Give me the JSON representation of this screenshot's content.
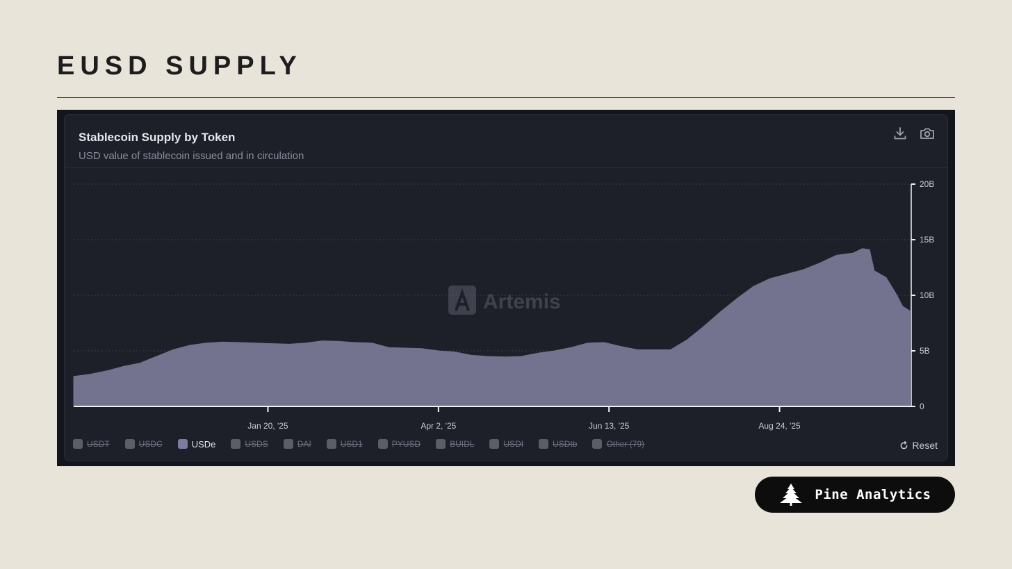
{
  "page": {
    "title": "EUSD SUPPLY"
  },
  "card": {
    "title": "Stablecoin Supply by Token",
    "subtitle": "USD value of stablecoin issued and in circulation",
    "watermark": "Artemis",
    "download_icon": "download-icon",
    "camera_icon": "camera-icon"
  },
  "legend": {
    "items": [
      {
        "label": "USDT",
        "active": false
      },
      {
        "label": "USDC",
        "active": false
      },
      {
        "label": "USDe",
        "active": true
      },
      {
        "label": "USDS",
        "active": false
      },
      {
        "label": "DAI",
        "active": false
      },
      {
        "label": "USD1",
        "active": false
      },
      {
        "label": "PYUSD",
        "active": false
      },
      {
        "label": "BUIDL",
        "active": false
      },
      {
        "label": "USDI",
        "active": false
      },
      {
        "label": "USDtb",
        "active": false
      },
      {
        "label": "Other (79)",
        "active": false
      }
    ],
    "reset_label": "Reset"
  },
  "brand": {
    "name": "Pine Analytics",
    "icon": "pine-tree-icon"
  },
  "colors": {
    "background": "#e8e4d9",
    "card": "#1d1f29",
    "series_fill": "#73738f",
    "brand_pill": "#0d0d0d"
  },
  "chart_data": {
    "type": "area",
    "title": "Stablecoin Supply by Token",
    "subtitle": "USD value of stablecoin issued and in circulation",
    "x_ticks": [
      "Jan 20, '25",
      "Apr 2, '25",
      "Jun 13, '25",
      "Aug 24, '25"
    ],
    "y_ticks": [
      "0",
      "5B",
      "10B",
      "15B",
      "20B"
    ],
    "y_axis_position": "right",
    "ylim": [
      0,
      20
    ],
    "y_unit": "B USD",
    "grid": true,
    "legend_position": "bottom-left",
    "x_range": [
      "2024-10-30",
      "2025-10-18"
    ],
    "series": [
      {
        "name": "USDe",
        "color": "#73738f",
        "points": [
          [
            "2024-10-30",
            2.7
          ],
          [
            "2024-11-06",
            2.9
          ],
          [
            "2024-11-13",
            3.2
          ],
          [
            "2024-11-20",
            3.6
          ],
          [
            "2024-11-27",
            3.9
          ],
          [
            "2024-12-04",
            4.5
          ],
          [
            "2024-12-11",
            5.1
          ],
          [
            "2024-12-18",
            5.5
          ],
          [
            "2024-12-25",
            5.7
          ],
          [
            "2025-01-01",
            5.8
          ],
          [
            "2025-01-08",
            5.75
          ],
          [
            "2025-01-15",
            5.7
          ],
          [
            "2025-01-22",
            5.65
          ],
          [
            "2025-01-29",
            5.6
          ],
          [
            "2025-02-05",
            5.7
          ],
          [
            "2025-02-12",
            5.9
          ],
          [
            "2025-02-19",
            5.85
          ],
          [
            "2025-02-26",
            5.75
          ],
          [
            "2025-03-05",
            5.7
          ],
          [
            "2025-03-12",
            5.3
          ],
          [
            "2025-03-19",
            5.25
          ],
          [
            "2025-03-26",
            5.2
          ],
          [
            "2025-04-02",
            5.0
          ],
          [
            "2025-04-09",
            4.9
          ],
          [
            "2025-04-16",
            4.6
          ],
          [
            "2025-04-23",
            4.5
          ],
          [
            "2025-04-30",
            4.45
          ],
          [
            "2025-05-07",
            4.5
          ],
          [
            "2025-05-14",
            4.8
          ],
          [
            "2025-05-21",
            5.0
          ],
          [
            "2025-05-28",
            5.3
          ],
          [
            "2025-06-04",
            5.7
          ],
          [
            "2025-06-11",
            5.75
          ],
          [
            "2025-06-18",
            5.4
          ],
          [
            "2025-06-25",
            5.1
          ],
          [
            "2025-07-02",
            5.1
          ],
          [
            "2025-07-09",
            5.1
          ],
          [
            "2025-07-16",
            6.0
          ],
          [
            "2025-07-23",
            7.2
          ],
          [
            "2025-07-30",
            8.5
          ],
          [
            "2025-08-06",
            9.7
          ],
          [
            "2025-08-13",
            10.8
          ],
          [
            "2025-08-20",
            11.5
          ],
          [
            "2025-08-27",
            11.9
          ],
          [
            "2025-09-03",
            12.3
          ],
          [
            "2025-09-10",
            12.9
          ],
          [
            "2025-09-17",
            13.6
          ],
          [
            "2025-09-24",
            13.8
          ],
          [
            "2025-09-28",
            14.2
          ],
          [
            "2025-10-01",
            14.1
          ],
          [
            "2025-10-03",
            12.2
          ],
          [
            "2025-10-08",
            11.6
          ],
          [
            "2025-10-12",
            10.2
          ],
          [
            "2025-10-15",
            9.0
          ],
          [
            "2025-10-18",
            8.6
          ]
        ]
      }
    ]
  }
}
